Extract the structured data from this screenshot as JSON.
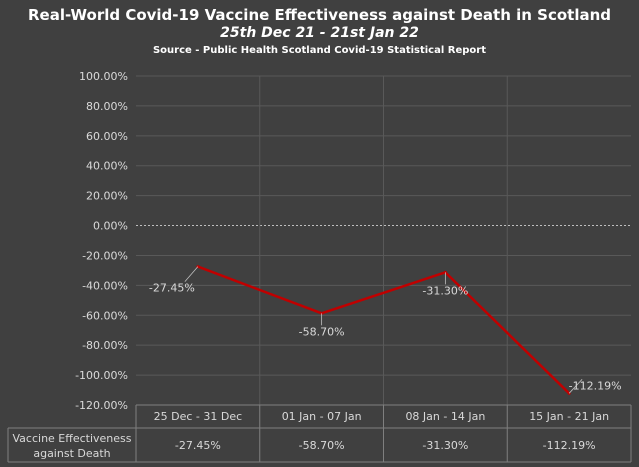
{
  "chart_data": {
    "type": "line",
    "title": "Real-World Covid-19 Vaccine Effectiveness against Death in Scotland",
    "subtitle": "25th Dec 21 - 21st Jan 22",
    "source": "Source - Public Health Scotland Covid-19 Statistical Report",
    "categories": [
      "25 Dec - 31 Dec",
      "01 Jan - 07 Jan",
      "08 Jan - 14 Jan",
      "15 Jan - 21 Jan"
    ],
    "series": [
      {
        "name": "Vaccine Effectiveness against Death",
        "values": [
          -27.45,
          -58.7,
          -31.3,
          -112.19
        ],
        "labels": [
          "-27.45%",
          "-58.70%",
          "-31.30%",
          "-112.19%"
        ]
      }
    ],
    "ylim": [
      -120,
      100
    ],
    "yticks": [
      100,
      80,
      60,
      40,
      20,
      0,
      -20,
      -40,
      -60,
      -80,
      -100,
      -120
    ],
    "ytick_labels": [
      "100.00%",
      "80.00%",
      "60.00%",
      "40.00%",
      "20.00%",
      "0.00%",
      "-20.00%",
      "-40.00%",
      "-60.00%",
      "-80.00%",
      "-100.00%",
      "-120.00%"
    ],
    "data_table": {
      "row_header": "Vaccine Effectiveness against Death",
      "row_header_lines": [
        "Vaccine Effectiveness",
        "against Death"
      ],
      "cells": [
        "-27.45%",
        "-58.70%",
        "-31.30%",
        "-112.19%"
      ]
    }
  },
  "colors": {
    "background": "#404040",
    "line": "#c00000",
    "grid": "#595959",
    "text": "#d9d9d9",
    "title": "#ffffff"
  }
}
